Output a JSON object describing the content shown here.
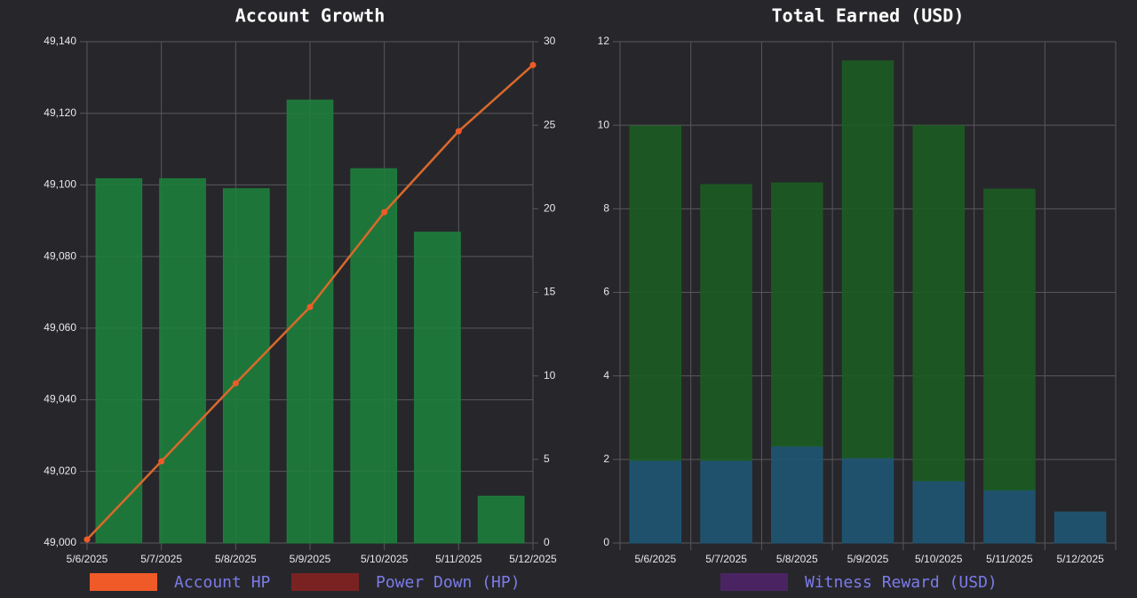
{
  "chart_data": [
    {
      "type": "bar",
      "title": "Account Growth",
      "categories": [
        "5/6/2025",
        "5/7/2025",
        "5/8/2025",
        "5/9/2025",
        "5/10/2025",
        "5/11/2025",
        "5/12/2025"
      ],
      "series": [
        {
          "name": "Account HP",
          "type": "line",
          "color": "#f05a28",
          "values": [
            49001,
            49022.8,
            49044.6,
            49065.9,
            49092.4,
            49115,
            49133.5
          ]
        },
        {
          "name": "Power Down (HP)",
          "type": "line",
          "color": "#7a2222",
          "values": [
            null,
            null,
            null,
            null,
            null,
            null,
            null
          ]
        },
        {
          "type": "bar",
          "axis": "y2",
          "color": "#1e7e3c",
          "values": [
            21.8,
            21.8,
            21.2,
            26.5,
            22.4,
            18.6,
            2.8
          ]
        }
      ],
      "ylim": [
        49000,
        49140
      ],
      "yticks": [
        {
          "value": 49000,
          "label": "49,000"
        },
        {
          "value": 49020,
          "label": "49,020"
        },
        {
          "value": 49040,
          "label": "49,040"
        },
        {
          "value": 49060,
          "label": "49,060"
        },
        {
          "value": 49080,
          "label": "49,080"
        },
        {
          "value": 49100,
          "label": "49,100"
        },
        {
          "value": 49120,
          "label": "49,120"
        },
        {
          "value": 49140,
          "label": "49,140"
        }
      ],
      "y2lim": [
        0,
        30
      ],
      "y2ticks": [
        0,
        5,
        10,
        15,
        20,
        25,
        30
      ],
      "grid": true
    },
    {
      "type": "bar",
      "title": "Total Earned (USD)",
      "stacked": true,
      "categories": [
        "5/6/2025",
        "5/7/2025",
        "5/8/2025",
        "5/9/2025",
        "5/10/2025",
        "5/11/2025",
        "5/12/2025"
      ],
      "series": [
        {
          "type": "bar",
          "color": "#1f5673",
          "values": [
            1.98,
            1.98,
            2.32,
            2.04,
            1.49,
            1.27,
            0.74
          ]
        },
        {
          "type": "bar",
          "color": "#1c5c22",
          "values": [
            8.0,
            6.6,
            6.3,
            9.5,
            8.5,
            7.2,
            null
          ]
        },
        {
          "name": "Witness Reward (USD)",
          "type": "bar",
          "color": "#4a2462",
          "values": [
            null,
            null,
            null,
            null,
            null,
            null,
            null
          ]
        }
      ],
      "ylim": [
        0,
        12
      ],
      "yticks": [
        0,
        2,
        4,
        6,
        8,
        10,
        12
      ],
      "grid": true
    }
  ]
}
